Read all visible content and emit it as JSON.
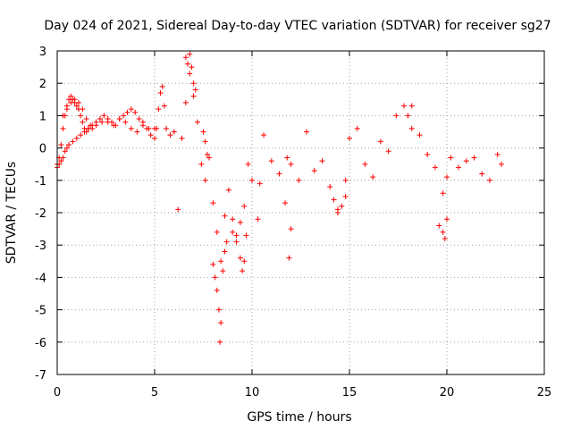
{
  "chart_data": {
    "type": "scatter",
    "title": "Day 024 of 2021, Sidereal Day-to-day VTEC variation (SDTVAR) for receiver sg27",
    "xlabel": "GPS time / hours",
    "ylabel": "SDTVAR / TECUs",
    "xlim": [
      0,
      25
    ],
    "ylim": [
      -7,
      3
    ],
    "xticks": [
      0,
      5,
      10,
      15,
      20,
      25
    ],
    "yticks": [
      3,
      2,
      1,
      0,
      -1,
      -2,
      -3,
      -4,
      -5,
      -6,
      -7
    ],
    "grid": true,
    "marker": "plus",
    "color": "#ff0000",
    "series": [
      {
        "name": "SDTVAR",
        "x": [
          0.0,
          0.1,
          0.2,
          0.3,
          0.4,
          0.5,
          0.6,
          0.7,
          0.8,
          0.9,
          1.0,
          1.1,
          1.2,
          1.3,
          1.4,
          1.5,
          1.6,
          1.8,
          2.0,
          2.2,
          2.4,
          2.6,
          2.8,
          3.0,
          3.2,
          3.4,
          3.6,
          3.8,
          4.0,
          4.2,
          4.4,
          4.6,
          4.8,
          5.0,
          5.1,
          5.2,
          5.3,
          5.4,
          5.5,
          5.6,
          5.8,
          6.0,
          6.2,
          6.4,
          6.6,
          6.8,
          7.0,
          7.2,
          7.4,
          7.6,
          7.8,
          8.0,
          8.2,
          8.4,
          8.6,
          8.8,
          9.0,
          9.2,
          9.4,
          9.6,
          9.8,
          10.0,
          10.4,
          10.6,
          11.0,
          11.4,
          11.8,
          12.0,
          12.4,
          12.8,
          13.2,
          13.6,
          14.0,
          14.4,
          14.8,
          15.0,
          15.4,
          15.8,
          16.2,
          16.6,
          17.0,
          17.4,
          17.8,
          18.2,
          18.6,
          19.0,
          19.4,
          19.8,
          20.0,
          20.2,
          20.6,
          21.0,
          21.4,
          21.8,
          22.2,
          22.6,
          22.8,
          0.0,
          0.1,
          0.2,
          0.3,
          0.4,
          0.5,
          0.6,
          0.8,
          1.0,
          1.2,
          1.4,
          1.6,
          1.8,
          2.0,
          2.3,
          2.6,
          2.9,
          3.2,
          3.5,
          3.8,
          4.1,
          4.4,
          4.7,
          5.0,
          0.3,
          0.5,
          0.7,
          0.9,
          1.1,
          1.3,
          1.5,
          1.7,
          6.6,
          6.7,
          6.8,
          6.9,
          7.0,
          7.1,
          7.5,
          7.6,
          7.7,
          8.0,
          8.1,
          8.2,
          8.3,
          8.35,
          8.4,
          8.5,
          8.6,
          8.7,
          9.0,
          9.2,
          9.4,
          9.5,
          9.6,
          9.7,
          12.0,
          11.7,
          10.3,
          11.9,
          14.2,
          14.4,
          14.6,
          14.8,
          18.0,
          18.2,
          19.6,
          19.8,
          19.9,
          20.0
        ],
        "y": [
          -0.5,
          -0.3,
          0.1,
          0.6,
          1.0,
          1.3,
          1.5,
          1.6,
          1.5,
          1.4,
          1.3,
          1.2,
          1.0,
          0.8,
          0.6,
          0.5,
          0.6,
          0.7,
          0.8,
          0.9,
          1.0,
          0.9,
          0.8,
          0.7,
          0.9,
          1.0,
          1.1,
          1.2,
          1.1,
          0.9,
          0.8,
          0.6,
          0.4,
          0.3,
          0.6,
          1.2,
          1.7,
          1.9,
          1.3,
          0.6,
          0.4,
          0.5,
          -1.9,
          0.3,
          1.4,
          2.3,
          1.6,
          0.8,
          -0.5,
          -1.0,
          -0.3,
          -1.7,
          -2.6,
          -3.5,
          -2.1,
          -1.3,
          -2.2,
          -2.7,
          -2.3,
          -1.8,
          -0.5,
          -1.0,
          -1.1,
          0.4,
          -0.4,
          -0.8,
          -0.3,
          -0.5,
          -1.0,
          0.5,
          -0.7,
          -0.4,
          -1.2,
          -1.9,
          -1.0,
          0.3,
          0.6,
          -0.5,
          -0.9,
          0.2,
          -0.1,
          1.0,
          1.3,
          0.6,
          0.4,
          -0.2,
          -0.6,
          -1.4,
          -0.9,
          -0.3,
          -0.6,
          -0.4,
          -0.3,
          -0.8,
          -1.0,
          -0.2,
          -0.5,
          -0.6,
          -0.5,
          -0.4,
          -0.3,
          -0.1,
          0.0,
          0.1,
          0.2,
          0.3,
          0.4,
          0.5,
          0.6,
          0.6,
          0.7,
          0.8,
          0.8,
          0.7,
          0.9,
          0.8,
          0.6,
          0.5,
          0.7,
          0.6,
          0.6,
          1.0,
          1.2,
          1.4,
          1.5,
          1.4,
          1.2,
          0.9,
          0.7,
          2.8,
          2.6,
          2.9,
          2.5,
          2.0,
          1.8,
          0.5,
          0.2,
          -0.2,
          -3.6,
          -4.0,
          -4.4,
          -5.0,
          -6.0,
          -5.4,
          -3.8,
          -3.2,
          -2.9,
          -2.6,
          -2.9,
          -3.4,
          -3.8,
          -3.5,
          -2.7,
          -2.5,
          -1.7,
          -2.2,
          -3.4,
          -1.6,
          -2.0,
          -1.8,
          -1.5,
          1.0,
          1.3,
          -2.4,
          -2.6,
          -2.8,
          -2.2
        ]
      }
    ]
  }
}
